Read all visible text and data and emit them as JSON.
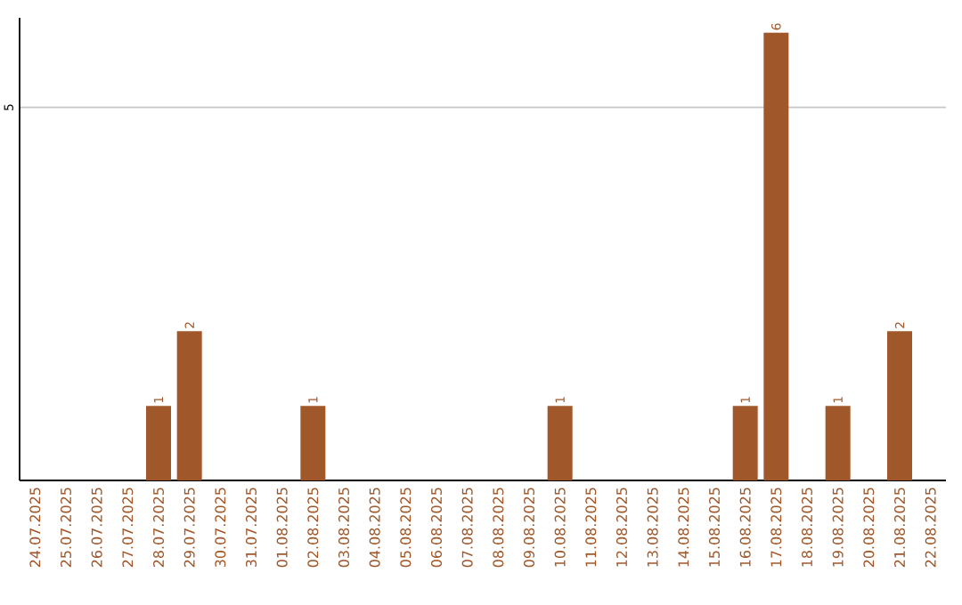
{
  "chart_data": {
    "type": "bar",
    "categories": [
      "24.07.2025",
      "25.07.2025",
      "26.07.2025",
      "27.07.2025",
      "28.07.2025",
      "29.07.2025",
      "30.07.2025",
      "31.07.2025",
      "01.08.2025",
      "02.08.2025",
      "03.08.2025",
      "04.08.2025",
      "05.08.2025",
      "06.08.2025",
      "07.08.2025",
      "08.08.2025",
      "09.08.2025",
      "10.08.2025",
      "11.08.2025",
      "12.08.2025",
      "13.08.2025",
      "14.08.2025",
      "15.08.2025",
      "16.08.2025",
      "17.08.2025",
      "18.08.2025",
      "19.08.2025",
      "20.08.2025",
      "21.08.2025",
      "22.08.2025"
    ],
    "values": [
      0,
      0,
      0,
      0,
      1,
      2,
      0,
      0,
      0,
      1,
      0,
      0,
      0,
      0,
      0,
      0,
      0,
      1,
      0,
      0,
      0,
      0,
      0,
      1,
      6,
      0,
      1,
      0,
      2,
      0
    ],
    "value_labels": [
      null,
      null,
      null,
      null,
      "1",
      "2",
      null,
      null,
      null,
      "1",
      null,
      null,
      null,
      null,
      null,
      null,
      null,
      "1",
      null,
      null,
      null,
      null,
      null,
      "1",
      "6",
      null,
      "1",
      null,
      "2",
      null
    ],
    "color": "#a0572a",
    "ylim": [
      0,
      6.2
    ],
    "yticks": [
      5
    ],
    "grid": "y"
  }
}
